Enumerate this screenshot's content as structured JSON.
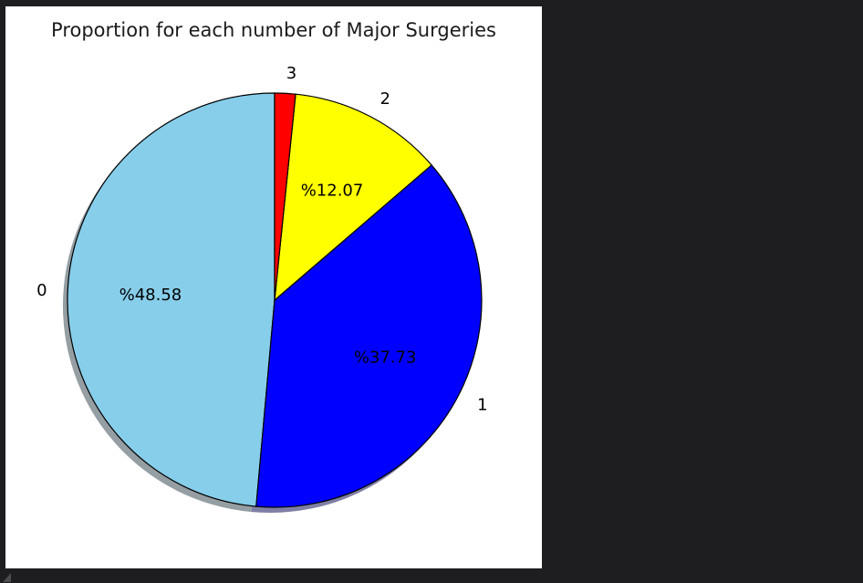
{
  "chart_data": {
    "type": "pie",
    "title": "Proportion for each number of Major Surgeries",
    "categories": [
      "0",
      "1",
      "2",
      "3"
    ],
    "values": [
      48.58,
      37.73,
      12.07,
      1.62
    ],
    "pct_labels": [
      "%48.58",
      "%37.73",
      "%12.07",
      ""
    ],
    "colors": [
      "#87ceeb",
      "#0000ff",
      "#ffff00",
      "#ff0000"
    ],
    "start_angle": 90,
    "counterclock": true,
    "label_distance": 1.1,
    "pct_distance": 0.6,
    "edge_color": "#000000",
    "text_color": "#000000",
    "title_color": "#1b1b1b",
    "shadow": true,
    "legend": "none"
  },
  "window": {
    "background": "#1e1e20",
    "figure_background": "#ffffff",
    "corner_mark_color": "#4b4b4d"
  }
}
